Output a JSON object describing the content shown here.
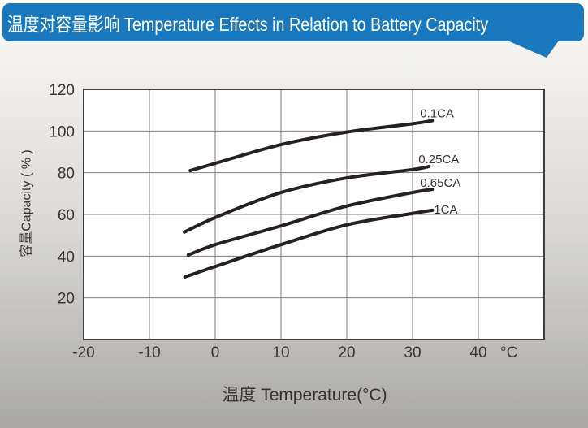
{
  "header": {
    "title": "温度对容量影响 Temperature Effects in Relation to Battery Capacity",
    "bg_color": "#1a79be",
    "text_color": "#ffffff"
  },
  "chart_data": {
    "type": "line",
    "title": "温度对容量影响 Temperature Effects in Relation to Battery Capacity",
    "xlabel": "温度  Temperature(°C)",
    "ylabel": "容量Capacity ( % )",
    "xlim": [
      -20,
      50
    ],
    "ylim": [
      0,
      120
    ],
    "x_ticks": [
      -20,
      -10,
      0,
      10,
      20,
      30,
      40
    ],
    "x_unit": "°C",
    "y_ticks": [
      120,
      100,
      80,
      60,
      40,
      20
    ],
    "grid": true,
    "legend_position": "labels-at-line-ends",
    "series": [
      {
        "name": "0.1CA",
        "points": [
          [
            -3.8,
            81
          ],
          [
            0,
            84.5
          ],
          [
            10,
            93.5
          ],
          [
            20,
            99.5
          ],
          [
            30,
            103.5
          ],
          [
            33,
            105
          ]
        ],
        "label_offset": [
          -15,
          -4
        ]
      },
      {
        "name": "0.25CA",
        "points": [
          [
            -4.7,
            51.5
          ],
          [
            0,
            58.5
          ],
          [
            10,
            70.5
          ],
          [
            20,
            77.5
          ],
          [
            30,
            81.5
          ],
          [
            32.5,
            83
          ]
        ],
        "label_offset": [
          -13,
          -4
        ]
      },
      {
        "name": "0.65CA",
        "points": [
          [
            -4.1,
            40.5
          ],
          [
            0,
            45.5
          ],
          [
            10,
            54.5
          ],
          [
            20,
            64
          ],
          [
            30,
            70.5
          ],
          [
            33,
            72
          ]
        ],
        "label_offset": [
          -15,
          -3
        ]
      },
      {
        "name": "1CA",
        "points": [
          [
            -4.6,
            30
          ],
          [
            0,
            35
          ],
          [
            10,
            45.5
          ],
          [
            20,
            55
          ],
          [
            30,
            60.5
          ],
          [
            33,
            62
          ]
        ],
        "label_offset": [
          2,
          4
        ]
      }
    ],
    "colors": {
      "plot_bg": "#ffffff",
      "line": "#26201e",
      "grid": "#7f7b79",
      "frame": "#433e3c",
      "tick_text": "#3a3533",
      "series_label_text": "#3a3331"
    }
  }
}
